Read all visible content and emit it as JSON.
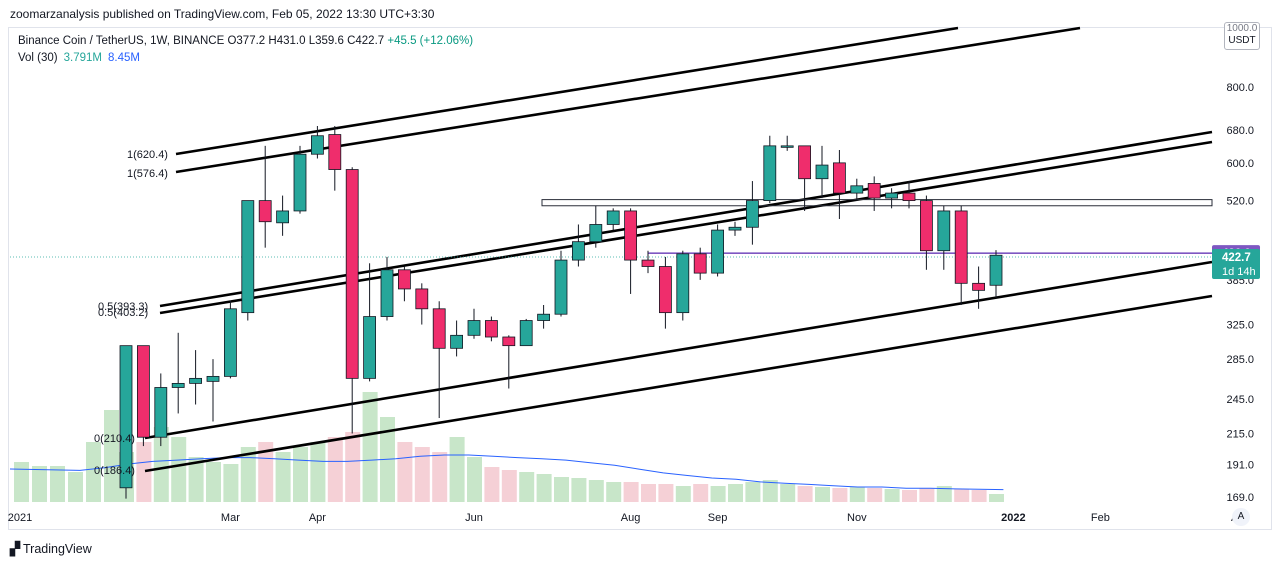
{
  "header": {
    "published": "zoomarzanalysis published on TradingView.com, Feb 05, 2022 13:30 UTC+3:30"
  },
  "legend": {
    "symbol": "Binance Coin / TetherUS, 1W, BINANCE",
    "open": "O377.2",
    "high": "H431.0",
    "low": "L359.6",
    "close": "C422.7",
    "change": "+45.5 (+12.06%)",
    "vol_label": "Vol (30)",
    "vol_value": "3.791M",
    "vol_ma": "8.45M"
  },
  "price_axis": {
    "unit_top": "1000.0",
    "unit": "USDT"
  },
  "badges": {
    "level": "426.0",
    "last": "422.7",
    "countdown": "1d 14h"
  },
  "controls": {
    "auto": "A"
  },
  "footer": {
    "brand": "TradingView"
  },
  "colors": {
    "up": "#26a69a",
    "down": "#ef2d6c",
    "vol_up": "#c8e6c9",
    "vol_down": "#f5d0d6",
    "vol_ma": "#2962ff",
    "level": "#7e57c2",
    "trendline": "#000000"
  },
  "chart_data": {
    "type": "candlestick",
    "symbol": "BNBUSDT",
    "interval": "1W",
    "scale": "log",
    "y_ticks": [
      169.0,
      191.0,
      215.0,
      245.0,
      285.0,
      325.0,
      385.0,
      520.0,
      600.0,
      680.0,
      800.0
    ],
    "x_tick_labels": [
      {
        "label": "2021",
        "week": -2
      },
      {
        "label": "Mar",
        "week": 6
      },
      {
        "label": "Apr",
        "week": 11
      },
      {
        "label": "Jun",
        "week": 20
      },
      {
        "label": "Aug",
        "week": 29
      },
      {
        "label": "Sep",
        "week": 34
      },
      {
        "label": "Nov",
        "week": 42
      },
      {
        "label": "2022",
        "week": 51
      },
      {
        "label": "Feb",
        "week": 56
      },
      {
        "label": "Apr",
        "week": 64
      }
    ],
    "candles": [
      {
        "o": 175,
        "h": 300,
        "l": 168,
        "c": 300
      },
      {
        "o": 300,
        "h": 300,
        "l": 205,
        "c": 212
      },
      {
        "o": 212,
        "h": 270,
        "l": 205,
        "c": 256
      },
      {
        "o": 256,
        "h": 315,
        "l": 232,
        "c": 260
      },
      {
        "o": 260,
        "h": 295,
        "l": 240,
        "c": 265
      },
      {
        "o": 262,
        "h": 285,
        "l": 225,
        "c": 267
      },
      {
        "o": 267,
        "h": 356,
        "l": 265,
        "c": 345
      },
      {
        "o": 340,
        "h": 520,
        "l": 330,
        "c": 520
      },
      {
        "o": 520,
        "h": 640,
        "l": 435,
        "c": 480
      },
      {
        "o": 478,
        "h": 530,
        "l": 455,
        "c": 500
      },
      {
        "o": 500,
        "h": 640,
        "l": 495,
        "c": 620
      },
      {
        "o": 620,
        "h": 690,
        "l": 610,
        "c": 665
      },
      {
        "o": 668,
        "h": 690,
        "l": 540,
        "c": 585
      },
      {
        "o": 585,
        "h": 590,
        "l": 215,
        "c": 265
      },
      {
        "o": 265,
        "h": 410,
        "l": 262,
        "c": 335
      },
      {
        "o": 335,
        "h": 420,
        "l": 330,
        "c": 400
      },
      {
        "o": 400,
        "h": 405,
        "l": 355,
        "c": 372
      },
      {
        "o": 372,
        "h": 380,
        "l": 325,
        "c": 345
      },
      {
        "o": 345,
        "h": 355,
        "l": 228,
        "c": 297
      },
      {
        "o": 297,
        "h": 330,
        "l": 288,
        "c": 312
      },
      {
        "o": 312,
        "h": 345,
        "l": 308,
        "c": 330
      },
      {
        "o": 330,
        "h": 335,
        "l": 305,
        "c": 310
      },
      {
        "o": 310,
        "h": 312,
        "l": 255,
        "c": 300
      },
      {
        "o": 300,
        "h": 332,
        "l": 300,
        "c": 330
      },
      {
        "o": 330,
        "h": 350,
        "l": 320,
        "c": 338
      },
      {
        "o": 338,
        "h": 430,
        "l": 335,
        "c": 415
      },
      {
        "o": 415,
        "h": 475,
        "l": 405,
        "c": 445
      },
      {
        "o": 445,
        "h": 510,
        "l": 435,
        "c": 475
      },
      {
        "o": 475,
        "h": 505,
        "l": 465,
        "c": 500
      },
      {
        "o": 500,
        "h": 505,
        "l": 365,
        "c": 415
      },
      {
        "o": 415,
        "h": 430,
        "l": 395,
        "c": 405
      },
      {
        "o": 405,
        "h": 420,
        "l": 320,
        "c": 340
      },
      {
        "o": 340,
        "h": 430,
        "l": 330,
        "c": 425
      },
      {
        "o": 425,
        "h": 435,
        "l": 385,
        "c": 395
      },
      {
        "o": 395,
        "h": 475,
        "l": 390,
        "c": 465
      },
      {
        "o": 465,
        "h": 480,
        "l": 455,
        "c": 470
      },
      {
        "o": 470,
        "h": 560,
        "l": 440,
        "c": 520
      },
      {
        "o": 520,
        "h": 665,
        "l": 515,
        "c": 640
      },
      {
        "o": 640,
        "h": 665,
        "l": 628,
        "c": 640
      },
      {
        "o": 640,
        "h": 640,
        "l": 500,
        "c": 565
      },
      {
        "o": 565,
        "h": 640,
        "l": 525,
        "c": 595
      },
      {
        "o": 600,
        "h": 630,
        "l": 485,
        "c": 535
      },
      {
        "o": 535,
        "h": 565,
        "l": 520,
        "c": 550
      },
      {
        "o": 555,
        "h": 570,
        "l": 500,
        "c": 525
      },
      {
        "o": 525,
        "h": 545,
        "l": 505,
        "c": 535
      },
      {
        "o": 535,
        "h": 560,
        "l": 505,
        "c": 520
      },
      {
        "o": 520,
        "h": 530,
        "l": 400,
        "c": 430
      },
      {
        "o": 430,
        "h": 510,
        "l": 400,
        "c": 500
      },
      {
        "o": 500,
        "h": 510,
        "l": 350,
        "c": 380
      },
      {
        "o": 380,
        "h": 405,
        "l": 345,
        "c": 370
      },
      {
        "o": 377.2,
        "h": 431.0,
        "l": 359.6,
        "c": 422.7
      }
    ],
    "volume_ma_series": [
      185,
      187,
      190,
      192,
      193,
      194,
      195,
      195,
      194,
      193,
      192,
      192,
      193,
      194,
      196,
      197,
      197,
      196,
      195,
      194,
      193,
      191,
      189,
      186,
      183,
      181,
      179,
      178,
      176,
      175,
      174,
      173,
      172,
      172,
      171,
      171,
      170.5,
      170.2,
      170
    ],
    "levels": [
      {
        "label": "426.0",
        "value": 426.0
      }
    ],
    "horizontal_zone": {
      "top": 520,
      "bottom": 508
    },
    "fib_labels": [
      {
        "label": "1(620.4)",
        "value": 620.4
      },
      {
        "label": "1(576.4)",
        "value": 576.4
      },
      {
        "label": "0.5(393.3)",
        "value": 393.3
      },
      {
        "label": "0.5(403.2)",
        "value": 403.2
      },
      {
        "label": "0(210.4)",
        "value": 210.4
      },
      {
        "label": "0(186.4)",
        "value": 186.4
      }
    ]
  }
}
